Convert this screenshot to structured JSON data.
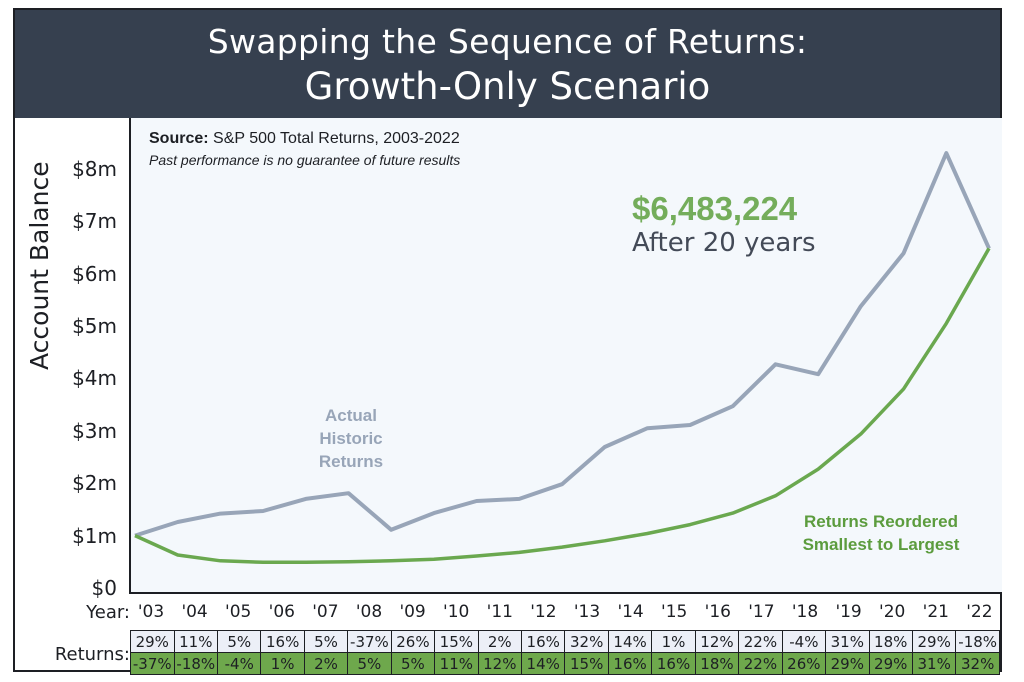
{
  "header": {
    "title_line1": "Swapping the Sequence of Returns:",
    "title_line2": "Growth-Only Scenario"
  },
  "annotations": {
    "source_label": "Source:",
    "source_text": "S&P 500 Total Returns, 2003-2022",
    "disclaimer": "Past performance is no guarantee of future results",
    "final_value": "$6,483,224",
    "final_value_caption": "After 20 years",
    "actual_label": [
      "Actual",
      "Historic",
      "Returns"
    ],
    "reordered_label": [
      "Returns Reordered",
      "Smallest to Largest"
    ]
  },
  "colors": {
    "header_bg": "#36404f",
    "plot_bg": "#f4f8fc",
    "actual_line": "#98a5b8",
    "reordered_line": "#6aa84f",
    "final_value_text": "#74ad5b",
    "actual_row_bg": "#eceff7",
    "reordered_row_bg": "#6ea84c"
  },
  "table": {
    "year_title": "Year:",
    "returns_title": "Returns:",
    "years": [
      "'03",
      "'04",
      "'05",
      "'06",
      "'07",
      "'08",
      "'09",
      "'10",
      "'11",
      "'12",
      "'13",
      "'14",
      "'15",
      "'16",
      "'17",
      "'18",
      "'19",
      "'20",
      "'21",
      "'22"
    ],
    "actual_returns": [
      "29%",
      "11%",
      "5%",
      "16%",
      "5%",
      "-37%",
      "26%",
      "15%",
      "2%",
      "16%",
      "32%",
      "14%",
      "1%",
      "12%",
      "22%",
      "-4%",
      "31%",
      "18%",
      "29%",
      "-18%"
    ],
    "reordered_returns": [
      "-37%",
      "-18%",
      "-4%",
      "1%",
      "2%",
      "5%",
      "5%",
      "11%",
      "12%",
      "14%",
      "15%",
      "16%",
      "16%",
      "18%",
      "22%",
      "26%",
      "29%",
      "29%",
      "31%",
      "32%"
    ]
  },
  "chart_data": {
    "type": "line",
    "title": "Swapping the Sequence of Returns: Growth-Only Scenario",
    "xlabel": "Year",
    "ylabel": "Account Balance",
    "x": [
      "'03",
      "'04",
      "'05",
      "'06",
      "'07",
      "'08",
      "'09",
      "'10",
      "'11",
      "'12",
      "'13",
      "'14",
      "'15",
      "'16",
      "'17",
      "'18",
      "'19",
      "'20",
      "'21",
      "'22"
    ],
    "ylim": [
      0,
      8
    ],
    "y_unit": "millions USD",
    "yticks": [
      0,
      1,
      2,
      3,
      4,
      5,
      6,
      7,
      8
    ],
    "ytick_labels": [
      "$0",
      "$1m",
      "$2m",
      "$3m",
      "$4m",
      "$5m",
      "$6m",
      "$7m",
      "$8m"
    ],
    "grid": false,
    "series": [
      {
        "name": "Actual Historic Returns",
        "values": [
          1.0,
          1.26,
          1.42,
          1.47,
          1.7,
          1.81,
          1.11,
          1.43,
          1.66,
          1.7,
          1.98,
          2.69,
          3.05,
          3.11,
          3.47,
          4.27,
          4.08,
          5.38,
          6.39,
          8.3,
          6.48
        ]
      },
      {
        "name": "Returns Reordered Smallest to Largest",
        "values": [
          1.0,
          0.63,
          0.52,
          0.49,
          0.49,
          0.5,
          0.52,
          0.55,
          0.61,
          0.68,
          0.78,
          0.9,
          1.04,
          1.21,
          1.43,
          1.76,
          2.27,
          2.94,
          3.8,
          5.05,
          6.48
        ]
      }
    ],
    "annotations": [
      "$6,483,224 After 20 years"
    ]
  }
}
